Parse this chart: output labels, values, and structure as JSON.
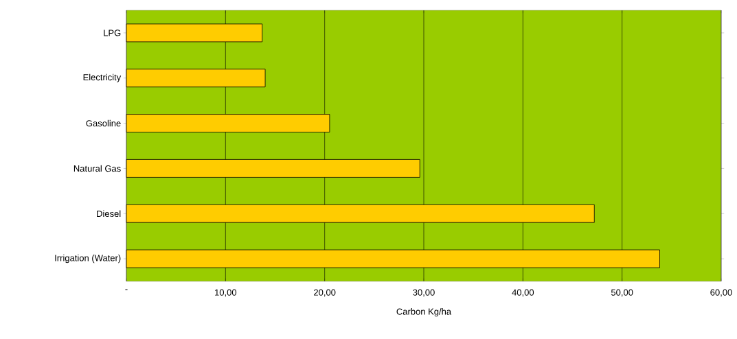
{
  "chart_data": {
    "type": "bar",
    "orientation": "horizontal",
    "xlabel": "Carbon Kg/ha",
    "categories": [
      "LPG",
      "Electricity",
      "Gasoline",
      "Natural Gas",
      "Diesel",
      "Irrigation (Water)"
    ],
    "values": [
      13.7,
      14.0,
      20.5,
      29.6,
      47.2,
      53.8
    ],
    "color": "#ffcc00",
    "grid": "x",
    "xlim": [
      0,
      60
    ],
    "xticks": [
      {
        "value": 0,
        "label": "-"
      },
      {
        "value": 10,
        "label": "10,00"
      },
      {
        "value": 20,
        "label": "20,00"
      },
      {
        "value": 30,
        "label": "30,00"
      },
      {
        "value": 40,
        "label": "40,00"
      },
      {
        "value": 50,
        "label": "50,00"
      },
      {
        "value": 60,
        "label": "60,00"
      }
    ]
  }
}
